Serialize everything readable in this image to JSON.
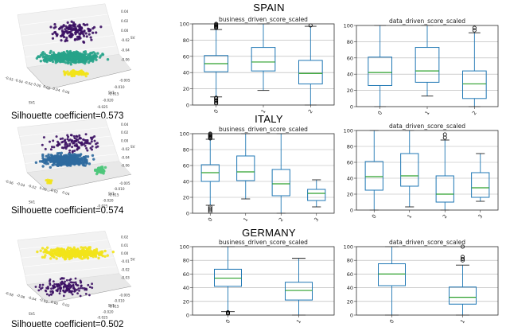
{
  "rows": [
    {
      "country": "SPAIN",
      "silhouette": "Silhouette coefficient=0.573",
      "scatter": {
        "colors": [
          "#3b0f63",
          "#27a38a",
          "#f2e31a"
        ],
        "axis_x_ticks": [
          "-0.05",
          "-0.04",
          "-0.02",
          "0.00",
          "0.02",
          "0.04",
          "0.06"
        ],
        "axis_y_ticks": [
          "-0.025",
          "-0.020",
          "-0.015",
          "-0.010",
          "-0.005"
        ],
        "axis_z_ticks": [
          "0.04",
          "0.02",
          "0.00",
          "-0.02",
          "-0.04",
          "-0.06"
        ],
        "axis_x_label": "SV1",
        "axis_y_label": "SV1",
        "axis_z_label": "SV2"
      }
    },
    {
      "country": "ITALY",
      "silhouette": "Silhouette coefficient=0.574",
      "scatter": {
        "colors": [
          "#3b0f63",
          "#2f6a9e",
          "#4ec77b",
          "#f2e31a"
        ],
        "axis_x_ticks": [
          "-0.06",
          "-0.04",
          "-0.02",
          "0.00",
          "0.02",
          "0.04"
        ],
        "axis_y_ticks": [
          "-0.025",
          "-0.020",
          "-0.015",
          "-0.010",
          "-0.005"
        ],
        "axis_z_ticks": [
          "0.04",
          "0.02",
          "0.00",
          "-0.02",
          "-0.04",
          "-0.06"
        ],
        "axis_x_label": "SV1",
        "axis_y_label": "SV1",
        "axis_z_label": "SV2"
      }
    },
    {
      "country": "GERMANY",
      "silhouette": "Silhouette coefficient=0.502",
      "scatter": {
        "colors": [
          "#3b0f63",
          "#f2e31a"
        ],
        "axis_x_ticks": [
          "-0.08",
          "-0.06",
          "-0.04",
          "-0.02",
          "0.00",
          "0.02"
        ],
        "axis_y_ticks": [
          "-0.025",
          "-0.020",
          "-0.015",
          "-0.010",
          "-0.005"
        ],
        "axis_z_ticks": [
          "0.02",
          "0.01",
          "0.00",
          "-0.01",
          "-0.02",
          "-0.03"
        ],
        "axis_x_label": "SV1",
        "axis_y_label": "SV1",
        "axis_z_label": "SV2"
      }
    }
  ],
  "colors": {
    "box": "#1f77b4",
    "median": "#2ca02c",
    "grid": "#b0b0b0",
    "flier": "#000000"
  },
  "chart_data": [
    {
      "type": "box",
      "title": "business_driven_score_scaled",
      "ylim": [
        0,
        100
      ],
      "yticks": [
        0,
        20,
        40,
        60,
        80,
        100
      ],
      "categories": [
        "0",
        "1",
        "2"
      ],
      "boxes": [
        {
          "whislo": 10,
          "q1": 41,
          "med": 51,
          "q3": 61,
          "whishi": 93,
          "fliers": [
            95,
            96,
            97,
            98,
            99,
            100,
            2,
            3,
            5,
            6,
            8,
            9
          ]
        },
        {
          "whislo": 18,
          "q1": 42,
          "med": 53,
          "q3": 71,
          "whishi": 100,
          "fliers": []
        },
        {
          "whislo": 0,
          "q1": 26,
          "med": 39,
          "q3": 55,
          "whishi": 97,
          "fliers": [
            98
          ]
        }
      ]
    },
    {
      "type": "box",
      "title": "data_driven_score_scaled",
      "ylim": [
        0,
        100
      ],
      "yticks": [
        0,
        20,
        40,
        60,
        80,
        100
      ],
      "categories": [
        "0",
        "1",
        "2"
      ],
      "boxes": [
        {
          "whislo": 0,
          "q1": 26,
          "med": 42,
          "q3": 61,
          "whishi": 100,
          "fliers": []
        },
        {
          "whislo": 13,
          "q1": 30,
          "med": 44,
          "q3": 73,
          "whishi": 100,
          "fliers": []
        },
        {
          "whislo": 0,
          "q1": 10,
          "med": 28,
          "q3": 44,
          "whishi": 91,
          "fliers": [
            94,
            97
          ]
        }
      ]
    },
    {
      "type": "box",
      "title": "business_driven_score_scaled",
      "ylim": [
        0,
        100
      ],
      "yticks": [
        0,
        20,
        40,
        60,
        80,
        100
      ],
      "categories": [
        "0",
        "1",
        "2",
        "3"
      ],
      "boxes": [
        {
          "whislo": 10,
          "q1": 40,
          "med": 51,
          "q3": 61,
          "whishi": 93,
          "fliers": [
            94,
            95,
            96,
            97,
            98,
            99,
            100,
            2,
            4,
            6,
            8
          ]
        },
        {
          "whislo": 18,
          "q1": 41,
          "med": 52,
          "q3": 72,
          "whishi": 100,
          "fliers": []
        },
        {
          "whislo": 0,
          "q1": 22,
          "med": 37,
          "q3": 55,
          "whishi": 100,
          "fliers": []
        },
        {
          "whislo": 8,
          "q1": 16,
          "med": 25,
          "q3": 30,
          "whishi": 42,
          "fliers": []
        }
      ]
    },
    {
      "type": "box",
      "title": "data_driven_score_scaled",
      "ylim": [
        0,
        100
      ],
      "yticks": [
        0,
        20,
        40,
        60,
        80,
        100
      ],
      "categories": [
        "0",
        "1",
        "2",
        "3"
      ],
      "boxes": [
        {
          "whislo": 0,
          "q1": 25,
          "med": 42,
          "q3": 61,
          "whishi": 100,
          "fliers": []
        },
        {
          "whislo": 4,
          "q1": 30,
          "med": 43,
          "q3": 71,
          "whishi": 100,
          "fliers": []
        },
        {
          "whislo": 0,
          "q1": 10,
          "med": 20,
          "q3": 43,
          "whishi": 88,
          "fliers": [
            91,
            95
          ]
        },
        {
          "whislo": 11,
          "q1": 16,
          "med": 28,
          "q3": 47,
          "whishi": 71,
          "fliers": []
        }
      ]
    },
    {
      "type": "box",
      "title": "business_driven_score_scaled",
      "ylim": [
        0,
        100
      ],
      "yticks": [
        0,
        20,
        40,
        60,
        80,
        100
      ],
      "categories": [
        "0",
        "1"
      ],
      "boxes": [
        {
          "whislo": 5,
          "q1": 42,
          "med": 54,
          "q3": 67,
          "whishi": 100,
          "fliers": [
            2,
            3,
            4
          ]
        },
        {
          "whislo": 0,
          "q1": 22,
          "med": 36,
          "q3": 48,
          "whishi": 83,
          "fliers": []
        }
      ]
    },
    {
      "type": "box",
      "title": "data_driven_score_scaled",
      "ylim": [
        0,
        100
      ],
      "yticks": [
        0,
        20,
        40,
        60,
        80,
        100
      ],
      "categories": [
        "0",
        "1"
      ],
      "boxes": [
        {
          "whislo": 0,
          "q1": 43,
          "med": 60,
          "q3": 75,
          "whishi": 100,
          "fliers": []
        },
        {
          "whislo": 0,
          "q1": 16,
          "med": 26,
          "q3": 41,
          "whishi": 73,
          "fliers": [
            80,
            82,
            85,
            100
          ]
        }
      ]
    }
  ]
}
